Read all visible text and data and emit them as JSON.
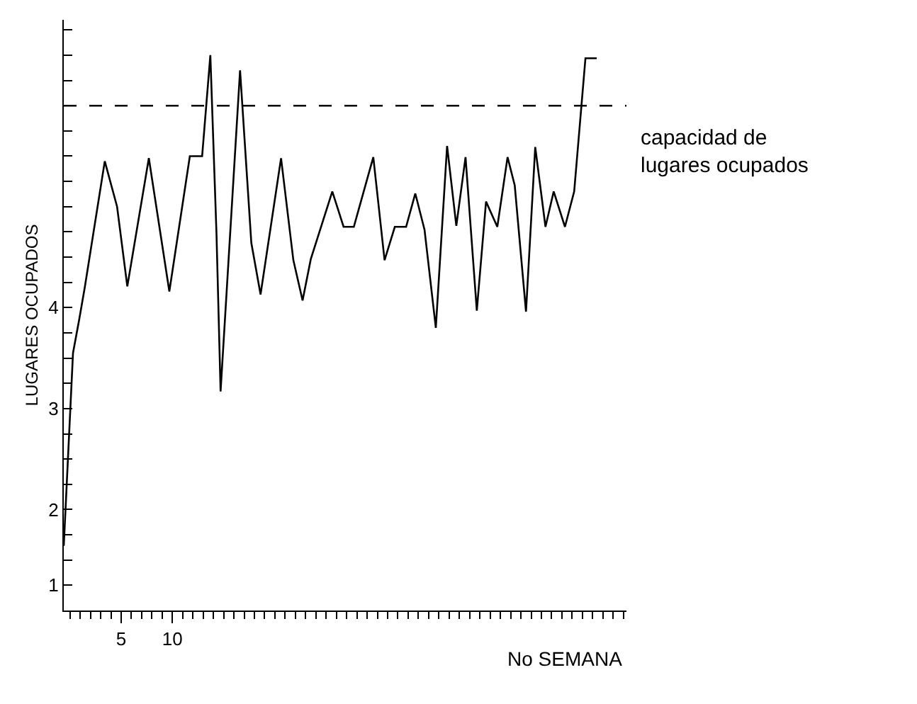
{
  "chart_data": {
    "type": "line",
    "xlabel": "No SEMANA",
    "ylabel": "LUGARES OCUPADOS",
    "x": [
      -0.6,
      0.3,
      0.9,
      1.45,
      3.4,
      4.6,
      5.6,
      7.7,
      9.7,
      11.7,
      12.9,
      13.7,
      14.3,
      14.7,
      16.6,
      17.7,
      18.6,
      20.6,
      21.8,
      22.7,
      23.5,
      25.6,
      26.7,
      27.7,
      29.6,
      30.7,
      31.7,
      32.8,
      33.7,
      34.6,
      35.7,
      36.8,
      37.7,
      38.6,
      39.7,
      40.6,
      41.7,
      42.7,
      43.4,
      44.5,
      45.4,
      46.4,
      47.2,
      48.3,
      49.2,
      50.3,
      51.4
    ],
    "series": [
      {
        "color": "#000000",
        "values": [
          1.64,
          3.55,
          3.88,
          4.2,
          5.45,
          5.0,
          4.21,
          5.48,
          4.16,
          5.5,
          5.5,
          6.5,
          4.73,
          3.17,
          6.35,
          4.64,
          4.13,
          5.48,
          4.47,
          4.07,
          4.48,
          5.15,
          4.8,
          4.8,
          5.49,
          4.47,
          4.8,
          4.8,
          5.13,
          4.77,
          3.8,
          5.6,
          4.81,
          5.49,
          3.97,
          5.05,
          4.8,
          5.49,
          5.21,
          3.96,
          5.59,
          4.8,
          5.15,
          4.8,
          5.15,
          6.47,
          6.47
        ]
      }
    ],
    "xlim": [
      -0.6,
      54.3
    ],
    "ylim": [
      1.0,
      6.85
    ],
    "xticks": [
      {
        "value": 0,
        "label": null
      },
      {
        "value": 1,
        "label": null
      },
      {
        "value": 2,
        "label": null
      },
      {
        "value": 3,
        "label": null
      },
      {
        "value": 4,
        "label": null
      },
      5,
      {
        "value": 6,
        "label": null
      },
      {
        "value": 7,
        "label": null
      },
      {
        "value": 8,
        "label": null
      },
      {
        "value": 9,
        "label": null
      },
      10,
      {
        "value": 11,
        "label": null
      },
      {
        "value": 12,
        "label": null
      },
      {
        "value": 13,
        "label": null
      },
      {
        "value": 14,
        "label": null
      },
      {
        "value": 15,
        "label": null
      },
      {
        "value": 16,
        "label": null
      },
      {
        "value": 17,
        "label": null
      },
      {
        "value": 18,
        "label": null
      },
      {
        "value": 19,
        "label": null
      },
      {
        "value": 20,
        "label": null
      },
      {
        "value": 21,
        "label": null
      },
      {
        "value": 22,
        "label": null
      },
      {
        "value": 23,
        "label": null
      },
      {
        "value": 24,
        "label": null
      },
      {
        "value": 25,
        "label": null
      },
      {
        "value": 26,
        "label": null
      },
      {
        "value": 27,
        "label": null
      },
      {
        "value": 28,
        "label": null
      },
      {
        "value": 29,
        "label": null
      },
      {
        "value": 30,
        "label": null
      },
      {
        "value": 31,
        "label": null
      },
      {
        "value": 32,
        "label": null
      },
      {
        "value": 33,
        "label": null
      },
      {
        "value": 34,
        "label": null
      },
      {
        "value": 35,
        "label": null
      },
      {
        "value": 36,
        "label": null
      },
      {
        "value": 37,
        "label": null
      },
      {
        "value": 38,
        "label": null
      },
      {
        "value": 39,
        "label": null
      },
      {
        "value": 40,
        "label": null
      },
      {
        "value": 41,
        "label": null
      },
      {
        "value": 42,
        "label": null
      },
      {
        "value": 43,
        "label": null
      },
      {
        "value": 44,
        "label": null
      },
      {
        "value": 45,
        "label": null
      },
      {
        "value": 46,
        "label": null
      },
      {
        "value": 47,
        "label": null
      },
      {
        "value": 48,
        "label": null
      },
      {
        "value": 49,
        "label": null
      },
      {
        "value": 50,
        "label": null
      },
      {
        "value": 51,
        "label": null
      },
      {
        "value": 52,
        "label": null
      },
      {
        "value": 53,
        "label": null
      },
      {
        "value": 54,
        "label": null
      }
    ],
    "yticks": [
      {
        "value": 1.25,
        "label": "1"
      },
      {
        "value": 1.5,
        "label": null
      },
      {
        "value": 1.75,
        "label": null
      },
      2,
      {
        "value": 2.25,
        "label": null
      },
      {
        "value": 2.5,
        "label": null
      },
      {
        "value": 2.75,
        "label": null
      },
      3,
      {
        "value": 3.25,
        "label": null
      },
      {
        "value": 3.5,
        "label": null
      },
      {
        "value": 3.75,
        "label": null
      },
      4,
      {
        "value": 4.25,
        "label": null
      },
      {
        "value": 4.5,
        "label": null
      },
      {
        "value": 4.75,
        "label": null
      },
      {
        "value": 5,
        "label": null
      },
      {
        "value": 5.25,
        "label": null
      },
      {
        "value": 5.5,
        "label": null
      },
      {
        "value": 5.75,
        "label": null
      },
      {
        "value": 6,
        "label": null
      },
      {
        "value": 6.25,
        "label": null
      },
      {
        "value": 6.5,
        "label": null
      },
      {
        "value": 6.75,
        "label": null
      }
    ],
    "ref_lines": [
      {
        "axis": "y",
        "value": 6.0,
        "label": "capacidad de\nlugares ocupados",
        "line_style": "dashed",
        "color": "#000000"
      }
    ],
    "marker": "none",
    "line_style": "solid"
  }
}
